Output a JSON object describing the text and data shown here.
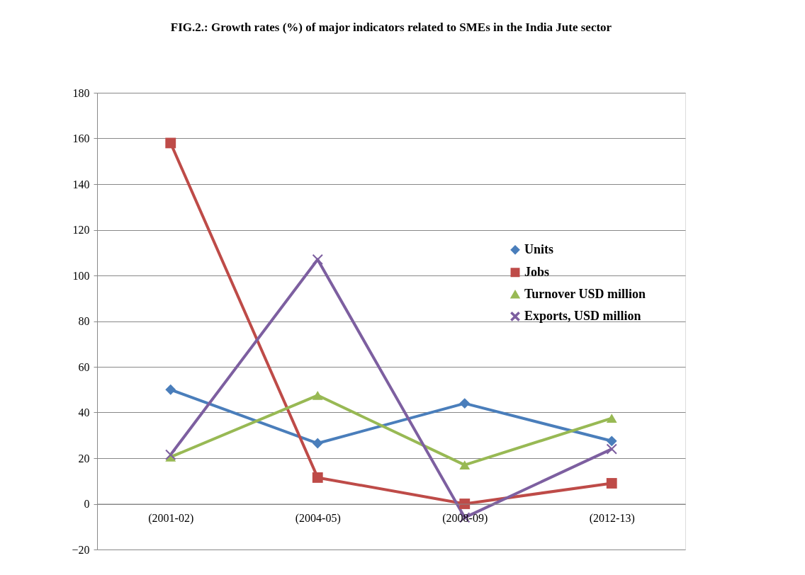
{
  "chart_data": {
    "type": "line",
    "title": "FIG.2.: Growth rates (%) of major indicators related to SMEs in the India Jute sector",
    "categories": [
      "(2001-02)",
      "(2004-05)",
      "(2008-09)",
      "(2012-13)"
    ],
    "series": [
      {
        "name": "Units",
        "color": "#4a7ebb",
        "marker": "diamond",
        "values": [
          50,
          26.5,
          44,
          27.5
        ]
      },
      {
        "name": "Jobs",
        "color": "#be4b48",
        "marker": "square",
        "values": [
          158,
          11.5,
          0,
          9
        ]
      },
      {
        "name": "Turnover USD million",
        "color": "#98b954",
        "marker": "triangle",
        "values": [
          20.5,
          47.5,
          17,
          37.5
        ]
      },
      {
        "name": "Exports, USD million",
        "color": "#7d5fa0",
        "marker": "cross",
        "values": [
          21.5,
          107,
          -6,
          24
        ]
      }
    ],
    "ylim": [
      -20,
      180
    ],
    "yticks": [
      -20,
      0,
      20,
      40,
      60,
      80,
      100,
      120,
      140,
      160,
      180
    ],
    "grid": "y",
    "legend": "right",
    "line_style": "solid"
  }
}
